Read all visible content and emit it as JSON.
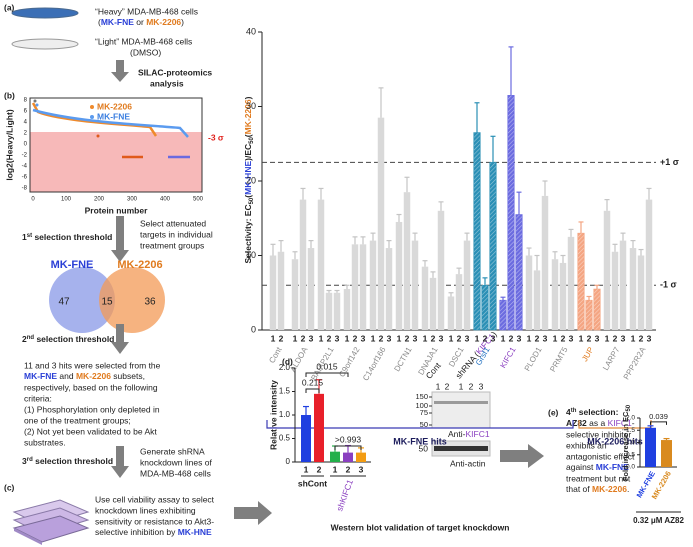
{
  "figure": {
    "a_label": "(a)",
    "heavy": "“Heavy” MDA-MB-468 cells",
    "heavy_sub": [
      "(",
      "MK-FNE",
      " or ",
      "MK-2206",
      ")"
    ],
    "light": "“Light” MDA-MB-468 cells",
    "light_sub": "(DMSO)",
    "silac": [
      "SILAC-proteomics",
      "analysis"
    ],
    "b_label": "(b)",
    "b_legend": [
      "MK-2206",
      "MK-FNE"
    ],
    "b_ylabel": "log2(Heavy/Light)",
    "b_xlabel": "Protein number",
    "b_threshold": "-3 σ",
    "b_yticks": [
      8,
      6,
      4,
      2,
      0,
      -2,
      -4,
      -6,
      -8
    ],
    "b_xticks": [
      0,
      100,
      200,
      300,
      400,
      500
    ],
    "t1": [
      "1",
      "st",
      " selection threshold"
    ],
    "t1_note": [
      "Select attenuated",
      "targets in individual",
      "treatment groups"
    ],
    "venn": {
      "left": "MK-FNE",
      "right": "MK-2206",
      "left_only": 47,
      "both": 15,
      "right_only": 36
    },
    "t2": [
      "2",
      "nd",
      " selection threshold"
    ],
    "criteria": [
      "11 and 3 hits were selected from the",
      "MK-FNE",
      " and ",
      "MK-2206",
      " subsets,",
      "respectively, based on the following",
      "criteria:",
      "(1) Phosphorylation only depleted in",
      "one of the treatment groups;",
      "(2) Not yet been validated to be Akt",
      "substrates."
    ],
    "t3": [
      "3",
      "rd",
      " selection threshold"
    ],
    "t3_note": [
      "Generate shRNA",
      "knockdown lines of",
      "MDA-MB-468 cells"
    ],
    "c_label": "(c)",
    "c_note": [
      "Use cell viability assay to select",
      "knockdown lines exhibiting",
      "sensitivity or resistance to Akt3-",
      "selective inhibition by ",
      "MK-HNE"
    ],
    "d_label": "(d)",
    "blot": {
      "cont": "Cont",
      "shrna": [
        "shRNA (",
        "KIFC1",
        ")"
      ],
      "lanes": [
        1,
        2,
        1,
        2,
        3
      ],
      "markers": [
        150,
        100,
        75,
        50
      ],
      "anti_kifc1": [
        "Anti-",
        "KIFC1"
      ],
      "actin_marker": 50,
      "anti_actin": "Anti-actin"
    },
    "d_caption": "Western blot validation of target knockdown",
    "e_label": "(e)",
    "e_note": [
      "4",
      "th",
      " selection:",
      "AZ82",
      " as a ",
      "KIFC1",
      "-",
      "selective inhibitor",
      "exhibits an",
      "antagonistic effect",
      "against ",
      "MK-FNE",
      "treatment but not",
      "that of ",
      "MK-2206",
      "."
    ]
  },
  "chart_data": [
    {
      "type": "replicate_bar",
      "ylabel": [
        "Selectivity: EC",
        "50",
        "(",
        "MK-HNE",
        ")/EC",
        "50",
        "(",
        "MK-2206",
        ")"
      ],
      "ylim": [
        0,
        40
      ],
      "yticks": [
        0,
        10,
        20,
        30,
        40
      ],
      "lines": [
        {
          "value": 22.5,
          "label": "+1 σ"
        },
        {
          "value": 6,
          "label": "-1 σ"
        }
      ],
      "groups": [
        {
          "name": "Cont",
          "replicates": [
            1,
            2
          ],
          "values": [
            10,
            10.5
          ],
          "errors": [
            1.5,
            1.5
          ],
          "color": "#d9d9d9"
        },
        {
          "name": "ALDOA",
          "replicates": [
            1,
            2,
            3
          ],
          "values": [
            9.5,
            17.5,
            11
          ],
          "errors": [
            1,
            1.5,
            1
          ],
          "color": "#d9d9d9"
        },
        {
          "name": "BAIAP2L1",
          "replicates": [
            1,
            2,
            3
          ],
          "values": [
            17.5,
            5,
            5
          ],
          "errors": [
            1.5,
            0.3,
            0.3
          ],
          "color": "#d9d9d9"
        },
        {
          "name": "C9orf142",
          "replicates": [
            1,
            2,
            3
          ],
          "values": [
            5.5,
            11.5,
            11.5
          ],
          "errors": [
            0.5,
            1,
            1
          ],
          "color": "#d9d9d9"
        },
        {
          "name": "C14orf166",
          "replicates": [
            1,
            2,
            3
          ],
          "values": [
            12,
            28.5,
            11
          ],
          "errors": [
            1,
            4,
            1
          ],
          "color": "#d9d9d9"
        },
        {
          "name": "DCTN1",
          "replicates": [
            1,
            2,
            3
          ],
          "values": [
            14.5,
            18.5,
            12
          ],
          "errors": [
            1,
            2,
            1
          ],
          "color": "#d9d9d9"
        },
        {
          "name": "DNAJA1",
          "replicates": [
            1,
            2,
            3
          ],
          "values": [
            8.5,
            7,
            16
          ],
          "errors": [
            0.8,
            0.8,
            1.2
          ],
          "color": "#d9d9d9"
        },
        {
          "name": "DSC1",
          "replicates": [
            1,
            2,
            3
          ],
          "values": [
            4.5,
            7.5,
            12
          ],
          "errors": [
            0.5,
            0.8,
            1
          ],
          "color": "#d9d9d9"
        },
        {
          "name": "Grsf1",
          "replicates": [
            1,
            2,
            3
          ],
          "values": [
            26.5,
            6,
            22.5
          ],
          "errors": [
            4,
            1,
            3.5
          ],
          "color": "#2a8fb5",
          "hatch": true,
          "label_color": "#1f6fc0"
        },
        {
          "name": "KIFC1",
          "replicates": [
            1,
            2,
            3
          ],
          "values": [
            4,
            31.5,
            15.5
          ],
          "errors": [
            0.4,
            6.5,
            3
          ],
          "color": "#6b6be0",
          "hatch": true,
          "label_color": "#8a3fc0"
        },
        {
          "name": "PLOD1",
          "replicates": [
            1,
            2,
            3
          ],
          "values": [
            10,
            8,
            18
          ],
          "errors": [
            1,
            2,
            2
          ],
          "color": "#d9d9d9"
        },
        {
          "name": "PRMT5",
          "replicates": [
            1,
            2,
            3
          ],
          "values": [
            9.5,
            9,
            12.5
          ],
          "errors": [
            1,
            1,
            1
          ],
          "color": "#d9d9d9"
        },
        {
          "name": "JUP",
          "replicates": [
            1,
            2,
            3
          ],
          "values": [
            13,
            4,
            5.5
          ],
          "errors": [
            1.5,
            0.5,
            0.5
          ],
          "color": "#f4a582",
          "hatch": true,
          "label_color": "#e07b1f"
        },
        {
          "name": "LARP7",
          "replicates": [
            1,
            2,
            3
          ],
          "values": [
            16,
            10.5,
            12
          ],
          "errors": [
            1.5,
            1,
            1
          ],
          "color": "#d9d9d9"
        },
        {
          "name": "PPP2R2A",
          "replicates": [
            1,
            2,
            3
          ],
          "values": [
            11,
            10,
            17.5
          ],
          "errors": [
            1,
            0.8,
            1.5
          ],
          "color": "#d9d9d9"
        }
      ],
      "brackets": [
        {
          "label": "MK-FNE hits",
          "color": "#3b3bb5"
        },
        {
          "label": "MK-2206 hits",
          "color": "#e08a3c"
        }
      ]
    },
    {
      "type": "bar",
      "ylabel": [
        "Relative intensity"
      ],
      "ylim": [
        0,
        2
      ],
      "yticks": [
        0,
        0.5,
        {
          "value": 1,
          "label": "1.0"
        },
        1.5,
        {
          "value": 2,
          "label": "2.0"
        }
      ],
      "categories": [
        1,
        2,
        1,
        2,
        3
      ],
      "groups": [
        "shCont",
        "shKIFC1"
      ],
      "values": [
        1.0,
        1.45,
        0.22,
        0.2,
        0.2
      ],
      "errors": [
        0.18,
        0.3,
        0.12,
        0.15,
        0.1
      ],
      "colors": [
        "#1f3fe0",
        "#e8202a",
        "#22b04a",
        "#8a3fc0",
        "#f39c12"
      ],
      "annotations": [
        "0.215",
        "0.015",
        ">0.993"
      ]
    },
    {
      "type": "bar",
      "ylabel": [
        "Fold increase in EC",
        "50"
      ],
      "ylim": [
        0,
        2
      ],
      "yticks": [
        {
          "value": 0,
          "label": "0.0"
        },
        0.5,
        {
          "value": 1,
          "label": "1.0"
        },
        1.5,
        {
          "value": 2,
          "label": "2.0"
        }
      ],
      "categories": [
        "MK-FNE",
        "MK-2206"
      ],
      "values": [
        1.6,
        1.1
      ],
      "errors": [
        0.08,
        0.06
      ],
      "colors": [
        "#1f3fe0",
        "#d98a1f"
      ],
      "annotations": [
        "0.039"
      ],
      "xlabel": "0.32 μM AZ82"
    }
  ]
}
